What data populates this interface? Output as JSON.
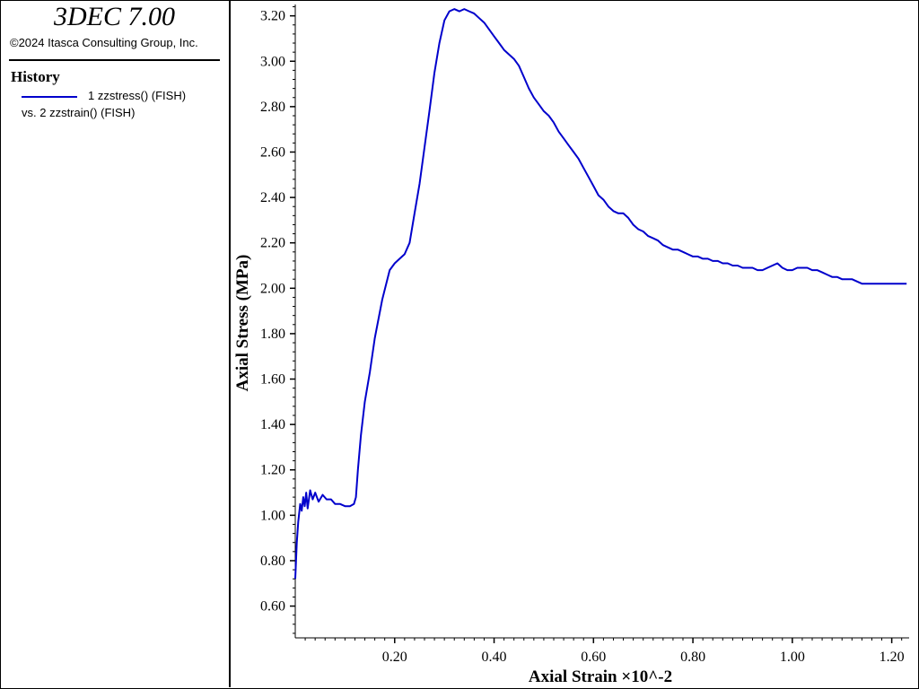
{
  "app": {
    "title": "3DEC 7.00",
    "copyright": "©2024 Itasca Consulting Group, Inc."
  },
  "legend": {
    "heading": "History",
    "line1": "1 zzstress() (FISH)",
    "line2": "vs. 2 zzstrain() (FISH)",
    "series_color": "#0000cc"
  },
  "chart_data": {
    "type": "line",
    "title": "",
    "xlabel": "Axial Strain ×10^-2",
    "ylabel": "Axial Stress (MPa)",
    "xlim": [
      0.0,
      1.235
    ],
    "ylim": [
      0.46,
      3.25
    ],
    "xticks": [
      0.2,
      0.4,
      0.6,
      0.8,
      1.0,
      1.2
    ],
    "xtick_labels": [
      "0.20",
      "0.40",
      "0.60",
      "0.80",
      "1.00",
      "1.20"
    ],
    "yticks": [
      0.6,
      0.8,
      1.0,
      1.2,
      1.4,
      1.6,
      1.8,
      2.0,
      2.2,
      2.4,
      2.6,
      2.8,
      3.0,
      3.2
    ],
    "ytick_labels": [
      "0.60",
      "0.80",
      "1.00",
      "1.20",
      "1.40",
      "1.60",
      "1.80",
      "2.00",
      "2.20",
      "2.40",
      "2.60",
      "2.80",
      "3.00",
      "3.20"
    ],
    "grid": false,
    "series": [
      {
        "color": "#0000cc",
        "x": [
          0.0,
          0.003,
          0.006,
          0.01,
          0.013,
          0.016,
          0.019,
          0.022,
          0.025,
          0.03,
          0.035,
          0.04,
          0.047,
          0.055,
          0.063,
          0.072,
          0.08,
          0.09,
          0.1,
          0.11,
          0.118,
          0.122,
          0.126,
          0.132,
          0.14,
          0.15,
          0.16,
          0.175,
          0.19,
          0.2,
          0.21,
          0.22,
          0.23,
          0.24,
          0.25,
          0.26,
          0.27,
          0.28,
          0.29,
          0.3,
          0.31,
          0.32,
          0.33,
          0.34,
          0.35,
          0.36,
          0.37,
          0.38,
          0.39,
          0.4,
          0.41,
          0.42,
          0.43,
          0.44,
          0.45,
          0.46,
          0.47,
          0.48,
          0.49,
          0.5,
          0.51,
          0.52,
          0.53,
          0.54,
          0.55,
          0.56,
          0.57,
          0.58,
          0.59,
          0.6,
          0.61,
          0.62,
          0.63,
          0.64,
          0.65,
          0.66,
          0.67,
          0.68,
          0.69,
          0.7,
          0.71,
          0.72,
          0.73,
          0.74,
          0.75,
          0.76,
          0.77,
          0.78,
          0.79,
          0.8,
          0.81,
          0.82,
          0.83,
          0.84,
          0.85,
          0.86,
          0.87,
          0.88,
          0.89,
          0.9,
          0.91,
          0.92,
          0.93,
          0.94,
          0.95,
          0.96,
          0.97,
          0.98,
          0.99,
          1.0,
          1.01,
          1.02,
          1.03,
          1.04,
          1.05,
          1.06,
          1.07,
          1.08,
          1.09,
          1.1,
          1.11,
          1.12,
          1.13,
          1.14,
          1.15,
          1.16,
          1.17,
          1.18,
          1.19,
          1.2,
          1.21,
          1.22,
          1.23
        ],
        "y": [
          0.72,
          0.88,
          0.97,
          1.05,
          1.02,
          1.08,
          1.04,
          1.1,
          1.03,
          1.11,
          1.07,
          1.1,
          1.06,
          1.09,
          1.07,
          1.07,
          1.05,
          1.05,
          1.04,
          1.04,
          1.05,
          1.08,
          1.2,
          1.35,
          1.5,
          1.63,
          1.78,
          1.95,
          2.08,
          2.11,
          2.13,
          2.15,
          2.2,
          2.33,
          2.46,
          2.62,
          2.78,
          2.95,
          3.08,
          3.18,
          3.22,
          3.23,
          3.22,
          3.23,
          3.22,
          3.21,
          3.19,
          3.17,
          3.14,
          3.11,
          3.08,
          3.05,
          3.03,
          3.01,
          2.98,
          2.93,
          2.88,
          2.84,
          2.81,
          2.78,
          2.76,
          2.73,
          2.69,
          2.66,
          2.63,
          2.6,
          2.57,
          2.53,
          2.49,
          2.45,
          2.41,
          2.39,
          2.36,
          2.34,
          2.33,
          2.33,
          2.31,
          2.28,
          2.26,
          2.25,
          2.23,
          2.22,
          2.21,
          2.19,
          2.18,
          2.17,
          2.17,
          2.16,
          2.15,
          2.14,
          2.14,
          2.13,
          2.13,
          2.12,
          2.12,
          2.11,
          2.11,
          2.1,
          2.1,
          2.09,
          2.09,
          2.09,
          2.08,
          2.08,
          2.09,
          2.1,
          2.11,
          2.09,
          2.08,
          2.08,
          2.09,
          2.09,
          2.09,
          2.08,
          2.08,
          2.07,
          2.06,
          2.05,
          2.05,
          2.04,
          2.04,
          2.04,
          2.03,
          2.02,
          2.02,
          2.02,
          2.02,
          2.02,
          2.02,
          2.02,
          2.02,
          2.02,
          2.02
        ]
      }
    ]
  }
}
